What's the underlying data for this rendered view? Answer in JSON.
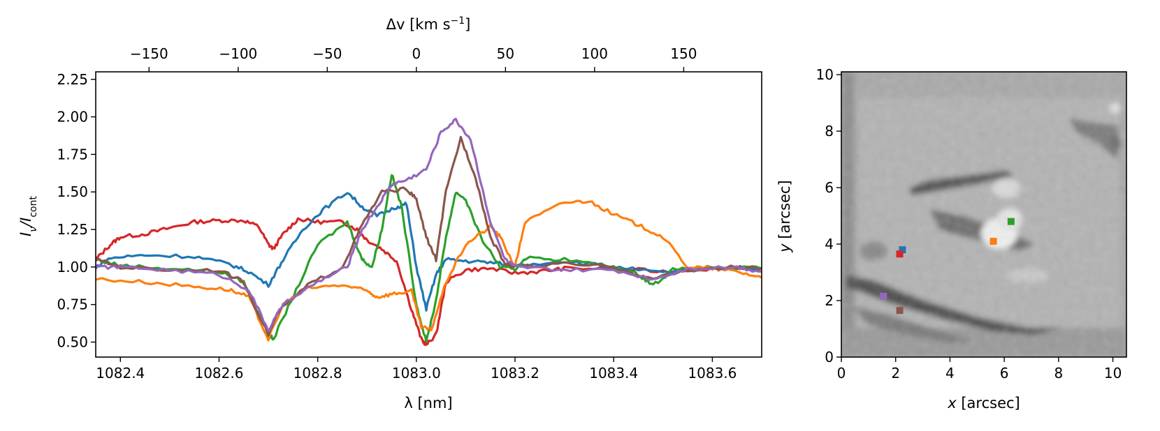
{
  "chart_data": [
    {
      "type": "line",
      "xlabel": "λ [nm]",
      "ylabel_main": "I",
      "ylabel_sub1": "ν",
      "ylabel_mid": "/I",
      "ylabel_sub2": "cont",
      "top_xlabel_main": "Δv [km s",
      "top_xlabel_sup": "−1",
      "top_xlabel_end": "]",
      "xlim": [
        1082.35,
        1083.7
      ],
      "ylim": [
        0.4,
        2.3
      ],
      "xticks": [
        {
          "v": 1082.4,
          "label": "1082.4"
        },
        {
          "v": 1082.6,
          "label": "1082.6"
        },
        {
          "v": 1082.8,
          "label": "1082.8"
        },
        {
          "v": 1083.0,
          "label": "1083.0"
        },
        {
          "v": 1083.2,
          "label": "1083.2"
        },
        {
          "v": 1083.4,
          "label": "1083.4"
        },
        {
          "v": 1083.6,
          "label": "1083.6"
        }
      ],
      "yticks": [
        {
          "v": 0.5,
          "label": "0.50"
        },
        {
          "v": 0.75,
          "label": "0.75"
        },
        {
          "v": 1.0,
          "label": "1.00"
        },
        {
          "v": 1.25,
          "label": "1.25"
        },
        {
          "v": 1.5,
          "label": "1.50"
        },
        {
          "v": 1.75,
          "label": "1.75"
        },
        {
          "v": 2.0,
          "label": "2.00"
        },
        {
          "v": 2.25,
          "label": "2.25"
        }
      ],
      "top_ref_wavelength": 1083.0,
      "top_scale_km_s_per_nm": 276.8,
      "top_ticks": [
        {
          "v": -150,
          "label": "−150"
        },
        {
          "v": -100,
          "label": "−100"
        },
        {
          "v": -50,
          "label": "−50"
        },
        {
          "v": 0,
          "label": "0"
        },
        {
          "v": 50,
          "label": "50"
        },
        {
          "v": 100,
          "label": "100"
        },
        {
          "v": 150,
          "label": "150"
        }
      ],
      "series": [
        {
          "name": "red",
          "color": "#d62728",
          "points": [
            [
              1082.35,
              1.05
            ],
            [
              1082.38,
              1.15
            ],
            [
              1082.4,
              1.2
            ],
            [
              1082.45,
              1.22
            ],
            [
              1082.5,
              1.26
            ],
            [
              1082.55,
              1.3
            ],
            [
              1082.6,
              1.31
            ],
            [
              1082.65,
              1.31
            ],
            [
              1082.68,
              1.27
            ],
            [
              1082.7,
              1.15
            ],
            [
              1082.71,
              1.12
            ],
            [
              1082.73,
              1.22
            ],
            [
              1082.76,
              1.32
            ],
            [
              1082.8,
              1.3
            ],
            [
              1082.85,
              1.3
            ],
            [
              1082.88,
              1.25
            ],
            [
              1082.9,
              1.18
            ],
            [
              1082.93,
              1.12
            ],
            [
              1082.96,
              1.04
            ],
            [
              1082.99,
              0.72
            ],
            [
              1083.01,
              0.52
            ],
            [
              1083.02,
              0.48
            ],
            [
              1083.04,
              0.55
            ],
            [
              1083.06,
              0.9
            ],
            [
              1083.1,
              0.98
            ],
            [
              1083.15,
              0.99
            ],
            [
              1083.2,
              0.96
            ],
            [
              1083.25,
              0.97
            ],
            [
              1083.3,
              0.99
            ],
            [
              1083.4,
              0.99
            ],
            [
              1083.5,
              0.97
            ],
            [
              1083.6,
              0.99
            ],
            [
              1083.7,
              0.99
            ]
          ]
        },
        {
          "name": "blue",
          "color": "#1f77b4",
          "points": [
            [
              1082.35,
              1.0
            ],
            [
              1082.38,
              1.06
            ],
            [
              1082.45,
              1.08
            ],
            [
              1082.55,
              1.07
            ],
            [
              1082.62,
              1.02
            ],
            [
              1082.66,
              0.97
            ],
            [
              1082.7,
              0.88
            ],
            [
              1082.73,
              1.05
            ],
            [
              1082.77,
              1.25
            ],
            [
              1082.81,
              1.38
            ],
            [
              1082.86,
              1.5
            ],
            [
              1082.89,
              1.4
            ],
            [
              1082.92,
              1.34
            ],
            [
              1082.96,
              1.4
            ],
            [
              1082.98,
              1.42
            ],
            [
              1083.0,
              1.0
            ],
            [
              1083.02,
              0.72
            ],
            [
              1083.04,
              0.95
            ],
            [
              1083.06,
              1.05
            ],
            [
              1083.1,
              1.04
            ],
            [
              1083.15,
              1.03
            ],
            [
              1083.2,
              1.01
            ],
            [
              1083.3,
              1.04
            ],
            [
              1083.4,
              1.0
            ],
            [
              1083.5,
              0.96
            ],
            [
              1083.55,
              0.98
            ],
            [
              1083.6,
              1.0
            ],
            [
              1083.7,
              0.99
            ]
          ]
        },
        {
          "name": "green",
          "color": "#2ca02c",
          "points": [
            [
              1082.35,
              1.05
            ],
            [
              1082.4,
              1.01
            ],
            [
              1082.5,
              0.99
            ],
            [
              1082.6,
              0.97
            ],
            [
              1082.65,
              0.9
            ],
            [
              1082.7,
              0.55
            ],
            [
              1082.71,
              0.52
            ],
            [
              1082.75,
              0.8
            ],
            [
              1082.8,
              1.15
            ],
            [
              1082.86,
              1.3
            ],
            [
              1082.89,
              1.05
            ],
            [
              1082.91,
              1.0
            ],
            [
              1082.93,
              1.25
            ],
            [
              1082.95,
              1.62
            ],
            [
              1082.97,
              1.4
            ],
            [
              1083.0,
              0.75
            ],
            [
              1083.02,
              0.5
            ],
            [
              1083.04,
              0.78
            ],
            [
              1083.06,
              1.2
            ],
            [
              1083.08,
              1.5
            ],
            [
              1083.1,
              1.45
            ],
            [
              1083.13,
              1.2
            ],
            [
              1083.17,
              1.0
            ],
            [
              1083.2,
              0.98
            ],
            [
              1083.22,
              1.06
            ],
            [
              1083.3,
              1.05
            ],
            [
              1083.4,
              1.0
            ],
            [
              1083.45,
              0.95
            ],
            [
              1083.48,
              0.88
            ],
            [
              1083.52,
              0.98
            ],
            [
              1083.6,
              1.0
            ],
            [
              1083.7,
              0.99
            ]
          ]
        },
        {
          "name": "orange",
          "color": "#ff7f0e",
          "points": [
            [
              1082.35,
              0.92
            ],
            [
              1082.45,
              0.9
            ],
            [
              1082.55,
              0.87
            ],
            [
              1082.62,
              0.85
            ],
            [
              1082.66,
              0.8
            ],
            [
              1082.7,
              0.52
            ],
            [
              1082.73,
              0.75
            ],
            [
              1082.78,
              0.86
            ],
            [
              1082.85,
              0.88
            ],
            [
              1082.9,
              0.84
            ],
            [
              1082.92,
              0.8
            ],
            [
              1082.95,
              0.82
            ],
            [
              1082.99,
              0.84
            ],
            [
              1083.01,
              0.6
            ],
            [
              1083.03,
              0.58
            ],
            [
              1083.06,
              0.9
            ],
            [
              1083.1,
              1.15
            ],
            [
              1083.15,
              1.27
            ],
            [
              1083.17,
              1.2
            ],
            [
              1083.2,
              1.0
            ],
            [
              1083.22,
              1.3
            ],
            [
              1083.3,
              1.43
            ],
            [
              1083.35,
              1.44
            ],
            [
              1083.4,
              1.35
            ],
            [
              1083.45,
              1.28
            ],
            [
              1083.5,
              1.2
            ],
            [
              1083.55,
              1.0
            ],
            [
              1083.6,
              0.99
            ],
            [
              1083.65,
              0.97
            ],
            [
              1083.7,
              0.93
            ]
          ]
        },
        {
          "name": "brown",
          "color": "#8c564b",
          "points": [
            [
              1082.35,
              1.05
            ],
            [
              1082.4,
              1.0
            ],
            [
              1082.5,
              0.98
            ],
            [
              1082.6,
              0.98
            ],
            [
              1082.65,
              0.9
            ],
            [
              1082.7,
              0.55
            ],
            [
              1082.72,
              0.7
            ],
            [
              1082.78,
              0.88
            ],
            [
              1082.85,
              1.0
            ],
            [
              1082.89,
              1.28
            ],
            [
              1082.93,
              1.5
            ],
            [
              1082.98,
              1.52
            ],
            [
              1083.0,
              1.45
            ],
            [
              1083.02,
              1.2
            ],
            [
              1083.04,
              1.05
            ],
            [
              1083.06,
              1.5
            ],
            [
              1083.09,
              1.86
            ],
            [
              1083.12,
              1.6
            ],
            [
              1083.15,
              1.2
            ],
            [
              1083.18,
              1.02
            ],
            [
              1083.2,
              1.0
            ],
            [
              1083.3,
              1.02
            ],
            [
              1083.4,
              1.0
            ],
            [
              1083.48,
              0.92
            ],
            [
              1083.55,
              0.98
            ],
            [
              1083.65,
              1.0
            ],
            [
              1083.7,
              0.99
            ]
          ]
        },
        {
          "name": "purple",
          "color": "#9467bd",
          "points": [
            [
              1082.35,
              1.0
            ],
            [
              1082.4,
              1.0
            ],
            [
              1082.5,
              0.98
            ],
            [
              1082.6,
              0.95
            ],
            [
              1082.66,
              0.85
            ],
            [
              1082.7,
              0.58
            ],
            [
              1082.73,
              0.75
            ],
            [
              1082.8,
              0.9
            ],
            [
              1082.86,
              1.0
            ],
            [
              1082.89,
              1.25
            ],
            [
              1082.93,
              1.45
            ],
            [
              1082.95,
              1.55
            ],
            [
              1082.98,
              1.58
            ],
            [
              1083.02,
              1.65
            ],
            [
              1083.05,
              1.9
            ],
            [
              1083.08,
              1.98
            ],
            [
              1083.11,
              1.85
            ],
            [
              1083.15,
              1.3
            ],
            [
              1083.18,
              1.05
            ],
            [
              1083.2,
              1.0
            ],
            [
              1083.3,
              0.98
            ],
            [
              1083.4,
              0.98
            ],
            [
              1083.48,
              0.92
            ],
            [
              1083.55,
              0.99
            ],
            [
              1083.65,
              1.0
            ],
            [
              1083.7,
              0.97
            ]
          ]
        }
      ]
    },
    {
      "type": "heatmap",
      "xlabel_main": "x",
      "xlabel_rest": " [arcsec]",
      "ylabel_main": "y",
      "ylabel_rest": " [arcsec]",
      "xlim": [
        0,
        10.5
      ],
      "ylim": [
        0,
        10.1
      ],
      "xticks": [
        {
          "v": 0,
          "label": "0"
        },
        {
          "v": 2,
          "label": "2"
        },
        {
          "v": 4,
          "label": "4"
        },
        {
          "v": 6,
          "label": "6"
        },
        {
          "v": 8,
          "label": "8"
        },
        {
          "v": 10,
          "label": "10"
        }
      ],
      "yticks": [
        {
          "v": 0,
          "label": "0"
        },
        {
          "v": 2,
          "label": "2"
        },
        {
          "v": 4,
          "label": "4"
        },
        {
          "v": 6,
          "label": "6"
        },
        {
          "v": 8,
          "label": "8"
        },
        {
          "v": 10,
          "label": "10"
        }
      ],
      "markers": [
        {
          "name": "blue",
          "color": "#1f77b4",
          "x": 2.25,
          "y": 3.8
        },
        {
          "name": "red",
          "color": "#d62728",
          "x": 2.15,
          "y": 3.65
        },
        {
          "name": "green",
          "color": "#2ca02c",
          "x": 6.25,
          "y": 4.8
        },
        {
          "name": "orange",
          "color": "#ff7f0e",
          "x": 5.6,
          "y": 4.1
        },
        {
          "name": "purple",
          "color": "#9467bd",
          "x": 1.55,
          "y": 2.15
        },
        {
          "name": "brown",
          "color": "#8c564b",
          "x": 2.15,
          "y": 1.65
        }
      ]
    }
  ]
}
